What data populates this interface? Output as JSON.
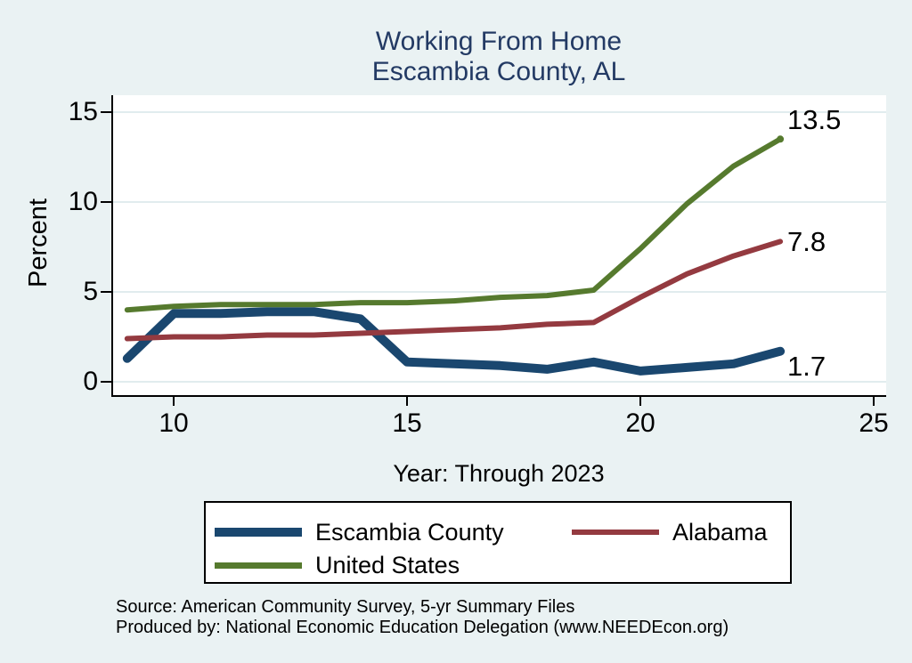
{
  "title": {
    "line1": "Working From Home",
    "line2": "Escambia County, AL"
  },
  "y_axis": {
    "label": "Percent",
    "ticks": [
      "0",
      "5",
      "10",
      "15"
    ]
  },
  "x_axis": {
    "label": "Year: Through 2023",
    "ticks": [
      "10",
      "15",
      "20",
      "25"
    ]
  },
  "end_labels": {
    "united_states": "13.5",
    "alabama": "7.8",
    "escambia_county": "1.7"
  },
  "legend": {
    "items": [
      {
        "label": "Escambia County",
        "color": "#1a476f",
        "swatch_height": 10
      },
      {
        "label": "Alabama",
        "color": "#943a40",
        "swatch_height": 6
      },
      {
        "label": "United States",
        "color": "#567a2e",
        "swatch_height": 7
      }
    ]
  },
  "footer": {
    "line1": "Source: American Community Survey, 5-yr Summary Files",
    "line2": "Produced by: National Economic Education Delegation (www.NEEDEcon.org)"
  },
  "colors": {
    "background": "#eaf2f3",
    "plot_background": "#ffffff",
    "gridline": "#e1ecee",
    "axis": "#000000",
    "title": "#233a64",
    "escambia": "#1a476f",
    "alabama": "#943a40",
    "united_states": "#567a2e"
  },
  "chart_data": {
    "type": "line",
    "title": "Working From Home - Escambia County, AL",
    "xlabel": "Year: Through 2023",
    "ylabel": "Percent",
    "x": [
      9,
      10,
      11,
      12,
      13,
      14,
      15,
      16,
      17,
      18,
      19,
      20,
      21,
      22,
      23
    ],
    "xticks": [
      10,
      15,
      20,
      25
    ],
    "yticks": [
      0,
      5,
      10,
      15
    ],
    "xlim": [
      8.66,
      25.27
    ],
    "ylim": [
      -0.84,
      15.94
    ],
    "grid": "horizontal",
    "grid_color": "#e1ecee",
    "legend_position": "bottom",
    "series": [
      {
        "name": "Escambia County",
        "color": "#1a476f",
        "width": 10,
        "end_label": "1.7",
        "values": [
          1.3,
          3.8,
          3.8,
          3.9,
          3.9,
          3.5,
          1.1,
          1.0,
          0.9,
          0.7,
          1.1,
          0.6,
          0.8,
          1.0,
          1.7
        ]
      },
      {
        "name": "Alabama",
        "color": "#943a40",
        "width": 6,
        "end_label": "7.8",
        "values": [
          2.4,
          2.5,
          2.5,
          2.6,
          2.6,
          2.7,
          2.8,
          2.9,
          3.0,
          3.2,
          3.3,
          4.7,
          6.0,
          7.0,
          7.8
        ]
      },
      {
        "name": "United States",
        "color": "#567a2e",
        "width": 6,
        "end_label": "13.5",
        "end_dot": true,
        "values": [
          4.0,
          4.2,
          4.3,
          4.3,
          4.3,
          4.4,
          4.4,
          4.5,
          4.7,
          4.8,
          5.1,
          7.4,
          9.9,
          12.0,
          13.5
        ]
      }
    ]
  }
}
